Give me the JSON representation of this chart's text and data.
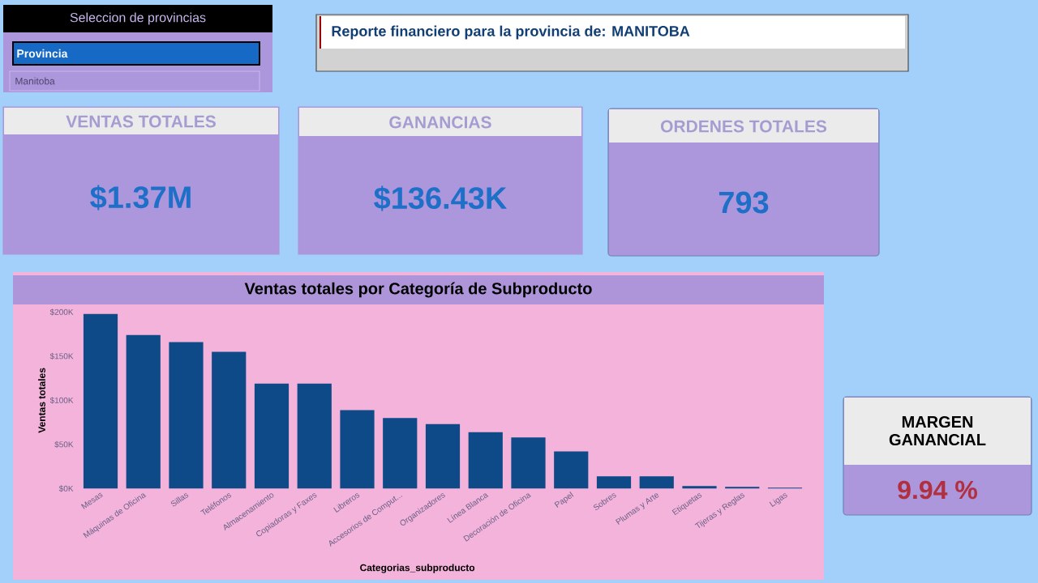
{
  "chart_data": [
    {
      "type": "other",
      "title": "Seleccion de provincias",
      "annotations": [
        "Provincia",
        "Manitoba"
      ]
    },
    {
      "type": "other",
      "title": "Reporte financiero para la provincia de: MANITOBA"
    },
    {
      "type": "other",
      "title": "VENTAS TOTALES",
      "annotations": [
        "$1.37M"
      ]
    },
    {
      "type": "other",
      "title": "GANANCIAS",
      "annotations": [
        "$136.43K"
      ]
    },
    {
      "type": "other",
      "title": "ORDENES TOTALES",
      "annotations": [
        "793"
      ]
    },
    {
      "type": "bar",
      "title": "Ventas totales por Categoría de Subproducto",
      "xlabel": "Categorias_subproducto",
      "ylabel": "Ventas totales",
      "categories": [
        "Mesas",
        "Máquinas de Oficina",
        "Sillas",
        "Teléfonos",
        "Almacenamiento",
        "Copiadoras y Faxes",
        "Libreros",
        "Accesorios de Comput...",
        "Organizadores",
        "Línea Blanca",
        "Decoración de Oficina",
        "Papel",
        "Sobres",
        "Plumas y Arte",
        "Etiquetas",
        "Tijeras y Reglas",
        "Ligas"
      ],
      "values": [
        198000,
        174000,
        166000,
        155000,
        119000,
        119000,
        89000,
        80000,
        73000,
        64000,
        58000,
        42000,
        14000,
        14000,
        3000,
        2000,
        1000
      ],
      "color": "#0d4a87",
      "ylim": [
        0,
        200000
      ],
      "yticks": [
        {
          "value": 0,
          "label": "$0K"
        },
        {
          "value": 50000,
          "label": "$50K"
        },
        {
          "value": 100000,
          "label": "$100K"
        },
        {
          "value": 150000,
          "label": "$150K"
        },
        {
          "value": 200000,
          "label": "$200K"
        }
      ]
    },
    {
      "type": "other",
      "title": "MARGEN GANANCIAL",
      "annotations": [
        "9.94 %"
      ]
    }
  ]
}
